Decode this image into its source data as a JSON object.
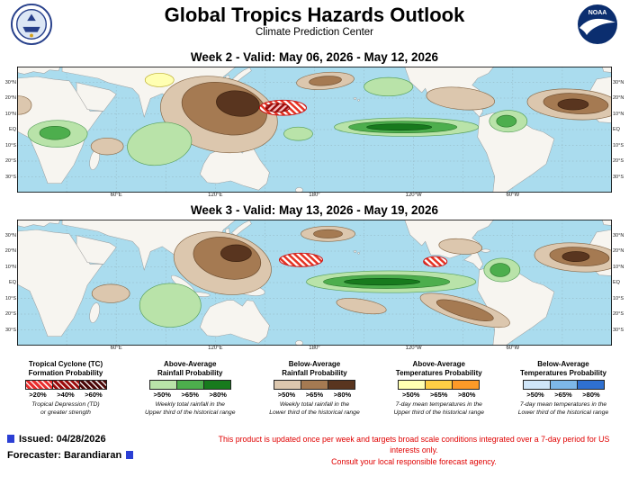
{
  "header": {
    "title": "Global Tropics Hazards Outlook",
    "subtitle": "Climate Prediction Center",
    "noaa_text": "NOAA"
  },
  "axis": {
    "lat": [
      "30°N",
      "20°N",
      "10°N",
      "EQ",
      "10°S",
      "20°S",
      "30°S"
    ],
    "lon": [
      "60°E",
      "120°E",
      "180°",
      "120°W",
      "60°W"
    ]
  },
  "maps": [
    {
      "title": "Week 2 - Valid: May 06, 2026 - May 12, 2026"
    },
    {
      "title": "Week 3 - Valid: May 13, 2026 - May 19, 2026"
    }
  ],
  "legend": [
    {
      "title1": "Tropical Cyclone (TC)",
      "title2": "Formation Probability",
      "thresholds": [
        ">20%",
        ">40%",
        ">60%"
      ],
      "colors": [
        "#e82c2c",
        "#9c0b0b",
        "#4a0606"
      ],
      "note1": "Tropical Depression (TD)",
      "note2": "or greater strength"
    },
    {
      "title1": "Above-Average",
      "title2": "Rainfall Probability",
      "thresholds": [
        ">50%",
        ">65%",
        ">80%"
      ],
      "colors": [
        "#b9e3a9",
        "#4dae4d",
        "#177a1d"
      ],
      "note1": "Weekly total rainfall in the",
      "note2": "Upper third of the historical range"
    },
    {
      "title1": "Below-Average",
      "title2": "Rainfall Probability",
      "thresholds": [
        ">50%",
        ">65%",
        ">80%"
      ],
      "colors": [
        "#dcc7ae",
        "#a57a52",
        "#59351f"
      ],
      "note1": "Weekly total rainfall in the",
      "note2": "Lower third of the historical range"
    },
    {
      "title1": "Above-Average",
      "title2": "Temperatures Probability",
      "thresholds": [
        ">50%",
        ">65%",
        ">80%"
      ],
      "colors": [
        "#ffffb2",
        "#fece45",
        "#fd9a28"
      ],
      "note1": "7-day mean temperatures in the",
      "note2": "Upper third of the historical range"
    },
    {
      "title1": "Below-Average",
      "title2": "Temperatures Probability",
      "thresholds": [
        ">50%",
        ">65%",
        ">80%"
      ],
      "colors": [
        "#cfe5f8",
        "#7db7e8",
        "#2f70d0"
      ],
      "note1": "7-day mean temperatures in the",
      "note2": "Lower third of the historical range"
    }
  ],
  "footer": {
    "issued_label": "Issued:",
    "issued_date": "04/28/2026",
    "forecaster_label": "Forecaster:",
    "forecaster_name": "Barandiaran",
    "disclaimer1": "This product is updated once per week and targets broad scale conditions integrated over a 7-day period for US interests only.",
    "disclaimer2": "Consult your local responsible forecast agency."
  }
}
